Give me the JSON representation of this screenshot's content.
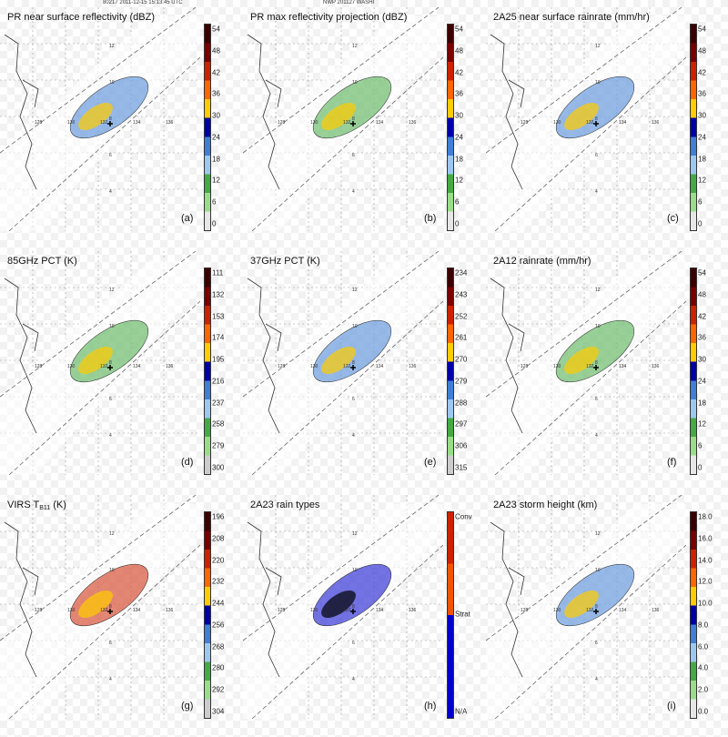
{
  "header": {
    "left": "80217 2011-12-15 15:13:45 UTC",
    "right": "NWP 201127 WASHI"
  },
  "map_ticks": {
    "lon": [
      "128",
      "130",
      "132",
      "134",
      "136"
    ],
    "lat": [
      "12",
      "10",
      "8",
      "6",
      "4"
    ]
  },
  "panels": [
    {
      "id": "a",
      "title": "PR near surface reflectivity (dBZ)",
      "label": "(a)",
      "ticks": [
        "54",
        "48",
        "42",
        "36",
        "30",
        "24",
        "18",
        "12",
        "6",
        "0"
      ],
      "colors": [
        "#3d0000",
        "#7a0000",
        "#cc2200",
        "#ff6600",
        "#ffcc00",
        "#0000aa",
        "#3f7fd6",
        "#9cc8f0",
        "#44aa44",
        "#99dd88",
        "#e6e6e6"
      ]
    },
    {
      "id": "b",
      "title": "PR max reflectivity projection (dBZ)",
      "label": "(b)",
      "ticks": [
        "54",
        "48",
        "42",
        "36",
        "30",
        "24",
        "18",
        "12",
        "6",
        "0"
      ],
      "colors": [
        "#3d0000",
        "#7a0000",
        "#cc2200",
        "#ff6600",
        "#ffcc00",
        "#0000aa",
        "#3f7fd6",
        "#9cc8f0",
        "#44aa44",
        "#99dd88",
        "#e6e6e6"
      ]
    },
    {
      "id": "c",
      "title": "2A25 near surface rainrate (mm/hr)",
      "label": "(c)",
      "ticks": [
        "54",
        "48",
        "42",
        "36",
        "30",
        "24",
        "18",
        "12",
        "6",
        "0"
      ],
      "colors": [
        "#3d0000",
        "#7a0000",
        "#cc2200",
        "#ff6600",
        "#ffcc00",
        "#0000aa",
        "#3f7fd6",
        "#9cc8f0",
        "#44aa44",
        "#99dd88",
        "#e6e6e6"
      ]
    },
    {
      "id": "d",
      "title": "85GHz PCT (K)",
      "label": "(d)",
      "ticks": [
        "111",
        "132",
        "153",
        "174",
        "195",
        "216",
        "237",
        "258",
        "279",
        "300"
      ],
      "colors": [
        "#3d0000",
        "#7a0000",
        "#cc2200",
        "#ff6600",
        "#ffcc00",
        "#0000aa",
        "#3f7fd6",
        "#9cc8f0",
        "#44aa44",
        "#99dd88",
        "#cccccc"
      ]
    },
    {
      "id": "e",
      "title": "37GHz PCT (K)",
      "label": "(e)",
      "ticks": [
        "234",
        "243",
        "252",
        "261",
        "270",
        "279",
        "288",
        "297",
        "306",
        "315"
      ],
      "colors": [
        "#3d0000",
        "#7a0000",
        "#cc2200",
        "#ff6600",
        "#ffcc00",
        "#0000aa",
        "#3f7fd6",
        "#9cc8f0",
        "#44aa44",
        "#99dd88",
        "#cccccc"
      ]
    },
    {
      "id": "f",
      "title": "2A12 rainrate (mm/hr)",
      "label": "(f)",
      "ticks": [
        "54",
        "48",
        "42",
        "36",
        "30",
        "24",
        "18",
        "12",
        "6",
        "0"
      ],
      "colors": [
        "#3d0000",
        "#7a0000",
        "#cc2200",
        "#ff6600",
        "#ffcc00",
        "#0000aa",
        "#3f7fd6",
        "#9cc8f0",
        "#44aa44",
        "#99dd88",
        "#e6e6e6"
      ]
    },
    {
      "id": "g",
      "title_main": "VIRS T",
      "title_sub": "B11",
      "title_end": " (K)",
      "label": "(g)",
      "ticks": [
        "196",
        "208",
        "220",
        "232",
        "244",
        "256",
        "268",
        "280",
        "292",
        "304"
      ],
      "colors": [
        "#3d0000",
        "#7a0000",
        "#cc2200",
        "#ff6600",
        "#ffcc00",
        "#0000aa",
        "#3f7fd6",
        "#9cc8f0",
        "#44aa44",
        "#99dd88",
        "#cccccc"
      ]
    },
    {
      "id": "h",
      "title": "2A23 rain types",
      "label": "(h)",
      "ticks": [
        "Conv",
        "Strat",
        "N/A"
      ],
      "colors": [
        "#cc2200",
        "#ee5500",
        "#0000cc",
        "#0000cc"
      ]
    },
    {
      "id": "i",
      "title": "2A23 storm height (km)",
      "label": "(i)",
      "ticks": [
        "18.0",
        "16.0",
        "14.0",
        "12.0",
        "10.0",
        "8.0",
        "6.0",
        "4.0",
        "2.0",
        "0.0"
      ],
      "colors": [
        "#3d0000",
        "#7a0000",
        "#cc2200",
        "#ff6600",
        "#ffcc00",
        "#0000aa",
        "#3f7fd6",
        "#9cc8f0",
        "#44aa44",
        "#99dd88",
        "#e6e6e6"
      ]
    }
  ]
}
